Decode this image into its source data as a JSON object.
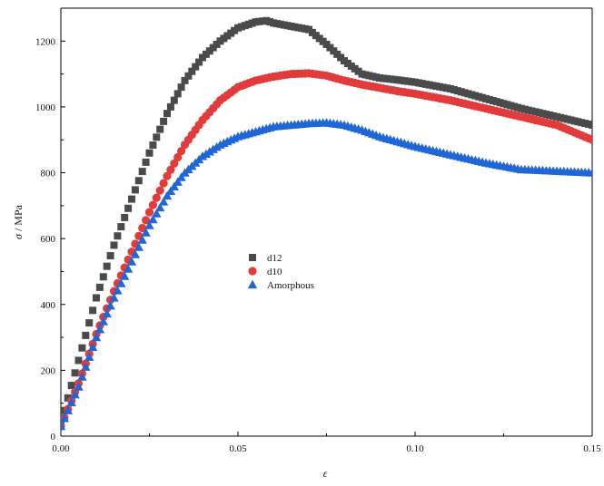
{
  "chart_data": {
    "type": "scatter",
    "title": "",
    "xlabel": "ε",
    "ylabel_symbol": "σ",
    "ylabel_unit": " / MPa",
    "xlim": [
      0,
      0.15
    ],
    "ylim": [
      0,
      1300
    ],
    "xticks": [
      0.0,
      0.05,
      0.1,
      0.15
    ],
    "xtick_labels": [
      "0.00",
      "0.05",
      "0.10",
      "0.15"
    ],
    "yticks": [
      0,
      200,
      400,
      600,
      800,
      1000,
      1200
    ],
    "ytick_labels": [
      "0",
      "200",
      "400",
      "600",
      "800",
      "1000",
      "1200"
    ],
    "grid": false,
    "legend_position": "center-left",
    "series": [
      {
        "name": "d12",
        "marker": "square",
        "color": "#4a4a4a",
        "x": [
          0.0,
          0.005,
          0.01,
          0.015,
          0.02,
          0.025,
          0.03,
          0.035,
          0.04,
          0.045,
          0.05,
          0.055,
          0.058,
          0.06,
          0.065,
          0.07,
          0.075,
          0.08,
          0.085,
          0.09,
          0.095,
          0.1,
          0.11,
          0.12,
          0.13,
          0.14,
          0.15
        ],
        "y": [
          40,
          230,
          420,
          580,
          720,
          860,
          980,
          1080,
          1150,
          1200,
          1240,
          1258,
          1262,
          1255,
          1245,
          1235,
          1190,
          1140,
          1100,
          1088,
          1082,
          1075,
          1055,
          1025,
          995,
          970,
          945
        ]
      },
      {
        "name": "d10",
        "marker": "circle",
        "color": "#e23b3b",
        "x": [
          0.0,
          0.005,
          0.01,
          0.015,
          0.02,
          0.025,
          0.03,
          0.035,
          0.04,
          0.045,
          0.05,
          0.055,
          0.06,
          0.065,
          0.07,
          0.075,
          0.08,
          0.085,
          0.09,
          0.095,
          0.1,
          0.11,
          0.12,
          0.13,
          0.14,
          0.15
        ],
        "y": [
          30,
          160,
          310,
          440,
          560,
          680,
          790,
          885,
          960,
          1020,
          1060,
          1080,
          1092,
          1100,
          1102,
          1095,
          1080,
          1068,
          1058,
          1048,
          1040,
          1020,
          995,
          970,
          945,
          900
        ]
      },
      {
        "name": "Amorphous",
        "marker": "triangle",
        "color": "#1f66d6",
        "x": [
          0.0,
          0.005,
          0.01,
          0.015,
          0.02,
          0.025,
          0.03,
          0.035,
          0.04,
          0.045,
          0.05,
          0.055,
          0.06,
          0.065,
          0.07,
          0.075,
          0.08,
          0.085,
          0.09,
          0.095,
          0.1,
          0.11,
          0.12,
          0.13,
          0.14,
          0.15
        ],
        "y": [
          30,
          150,
          300,
          420,
          530,
          640,
          730,
          800,
          850,
          885,
          910,
          925,
          940,
          945,
          950,
          952,
          945,
          930,
          910,
          895,
          880,
          855,
          830,
          810,
          805,
          800
        ]
      }
    ]
  }
}
